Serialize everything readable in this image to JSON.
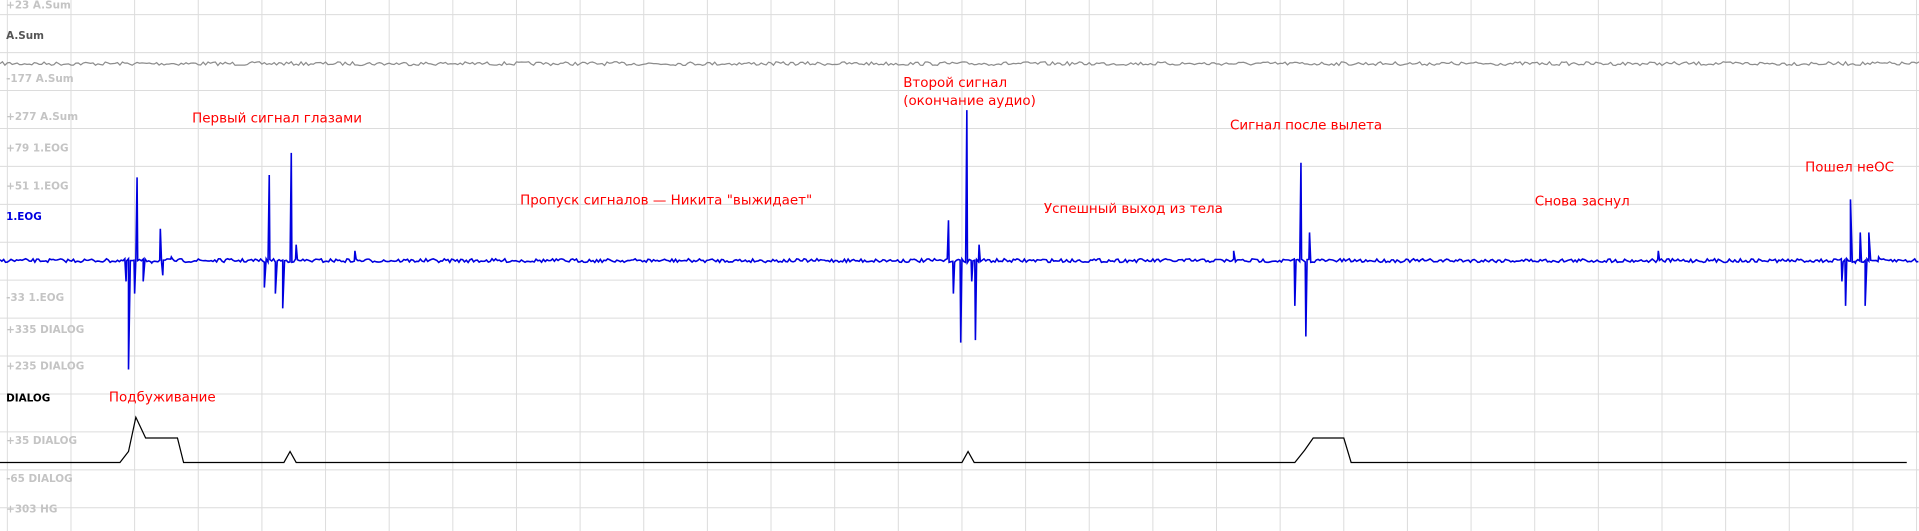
{
  "scale_labels": [
    "+23 A.Sum",
    "-177 A.Sum",
    "+277 A.Sum",
    "+79 1.EOG",
    "+51 1.EOG",
    "-33 1.EOG",
    "+335 DIALOG",
    "+235 DIALOG",
    "+35 DIALOG",
    "-65 DIALOG",
    "+303 HG"
  ],
  "channels": [
    "A.Sum",
    "1.EOG",
    "DIALOG"
  ],
  "annotations": [
    "Первый сигнал глазами",
    "Второй сигнал",
    "(окончание аудио)",
    "Сигнал после вылета",
    "Пошел неОС",
    "Пропуск сигналов — Никита \"выжидает\"",
    "Успешный выход из тела",
    "Снова заснул",
    "Подбуживание"
  ]
}
